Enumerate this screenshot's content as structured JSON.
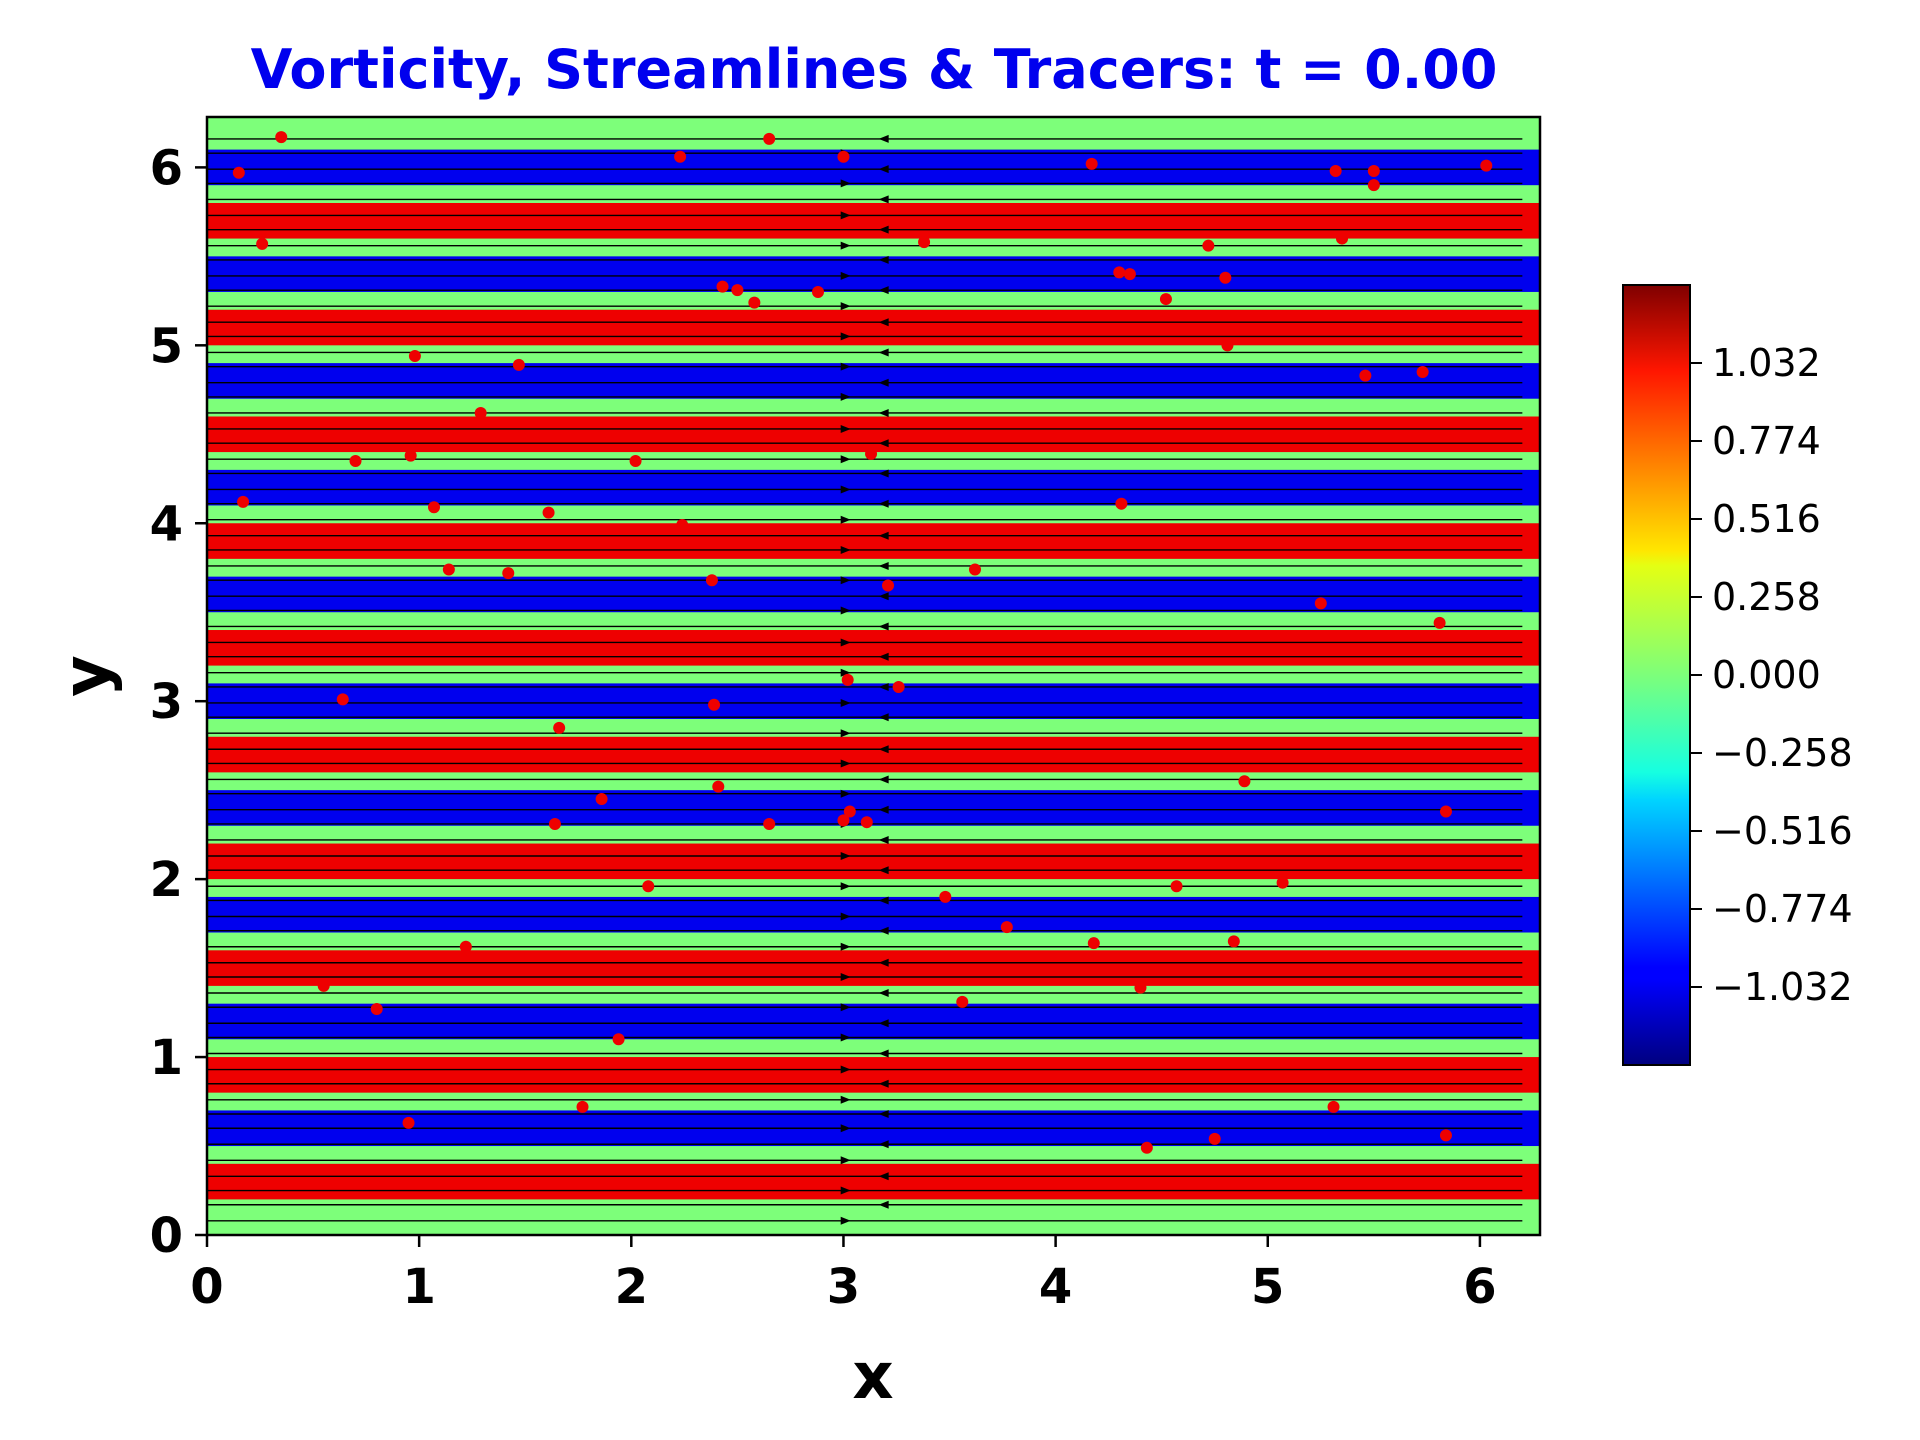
{
  "chart_data": {
    "type": "heatmap",
    "title": "Vorticity, Streamlines & Tracers: t = 0.00",
    "title_color": "#0000ee",
    "xlabel": "x",
    "ylabel": "y",
    "xlim": [
      0,
      6.2832
    ],
    "ylim": [
      0,
      6.2832
    ],
    "x_ticks": [
      "0",
      "1",
      "2",
      "3",
      "4",
      "5",
      "6"
    ],
    "y_ticks": [
      "0",
      "1",
      "2",
      "3",
      "4",
      "5",
      "6"
    ],
    "grid": false,
    "colormap": "jet",
    "colorbar": {
      "range": [
        -1.29,
        1.29
      ],
      "ticks": [
        1.032,
        0.774,
        0.516,
        0.258,
        0.0,
        -0.258,
        -0.516,
        -0.774,
        -1.032
      ],
      "tick_labels": [
        "1.032",
        "0.774",
        "0.516",
        "0.258",
        "0.000",
        "−0.258",
        "−0.516",
        "−0.774",
        "−1.032"
      ]
    },
    "vorticity_bands": {
      "description_values": "horizontal shear-layer bands of vorticity alternating +1.2 / 0 / -1.2 / 0 with period 0.6",
      "band_period": 0.6,
      "bands": [
        {
          "y0": 0.2,
          "y1": 0.4,
          "value": 1.2
        },
        {
          "y0": 0.5,
          "y1": 0.7,
          "value": -1.2
        },
        {
          "y0": 0.8,
          "y1": 1.0,
          "value": 1.2
        },
        {
          "y0": 1.1,
          "y1": 1.3,
          "value": -1.2
        },
        {
          "y0": 1.4,
          "y1": 1.6,
          "value": 1.2
        },
        {
          "y0": 1.7,
          "y1": 1.9,
          "value": -1.2
        },
        {
          "y0": 2.0,
          "y1": 2.2,
          "value": 1.2
        },
        {
          "y0": 2.3,
          "y1": 2.5,
          "value": -1.2
        },
        {
          "y0": 2.6,
          "y1": 2.8,
          "value": 1.2
        },
        {
          "y0": 2.9,
          "y1": 3.1,
          "value": -1.2
        },
        {
          "y0": 3.2,
          "y1": 3.4,
          "value": 1.2
        },
        {
          "y0": 3.5,
          "y1": 3.7,
          "value": -1.2
        },
        {
          "y0": 3.8,
          "y1": 4.0,
          "value": 1.2
        },
        {
          "y0": 4.1,
          "y1": 4.3,
          "value": -1.2
        },
        {
          "y0": 4.4,
          "y1": 4.6,
          "value": 1.2
        },
        {
          "y0": 4.7,
          "y1": 4.9,
          "value": -1.2
        },
        {
          "y0": 5.0,
          "y1": 5.2,
          "value": 1.2
        },
        {
          "y0": 5.3,
          "y1": 5.5,
          "value": -1.2
        },
        {
          "y0": 5.6,
          "y1": 5.8,
          "value": 1.2
        },
        {
          "y0": 5.9,
          "y1": 6.1,
          "value": -1.2
        }
      ]
    },
    "streamlines": {
      "y": [
        0.08,
        0.17,
        0.25,
        0.33,
        0.42,
        0.51,
        0.6,
        0.68,
        0.76,
        0.85,
        0.93,
        1.02,
        1.11,
        1.19,
        1.28,
        1.36,
        1.45,
        1.53,
        1.62,
        1.71,
        1.79,
        1.88,
        1.96,
        2.05,
        2.13,
        2.22,
        2.31,
        2.39,
        2.48,
        2.56,
        2.65,
        2.73,
        2.82,
        2.91,
        2.99,
        3.08,
        3.16,
        3.25,
        3.33,
        3.42,
        3.51,
        3.59,
        3.68,
        3.76,
        3.85,
        3.93,
        4.02,
        4.11,
        4.19,
        4.28,
        4.36,
        4.45,
        4.53,
        4.62,
        4.71,
        4.79,
        4.88,
        4.96,
        5.05,
        5.13,
        5.22,
        5.31,
        5.39,
        5.48,
        5.56,
        5.65,
        5.73,
        5.82,
        5.91,
        5.99,
        6.08,
        6.16
      ],
      "color": "#000000"
    },
    "tracers": {
      "color": "#ee0000",
      "points": [
        [
          0.35,
          6.17
        ],
        [
          0.15,
          5.97
        ],
        [
          0.26,
          5.57
        ],
        [
          2.23,
          6.06
        ],
        [
          2.65,
          6.16
        ],
        [
          3.0,
          6.06
        ],
        [
          4.17,
          6.02
        ],
        [
          5.32,
          5.98
        ],
        [
          5.5,
          5.98
        ],
        [
          5.5,
          5.9
        ],
        [
          6.03,
          6.01
        ],
        [
          3.38,
          5.58
        ],
        [
          4.72,
          5.56
        ],
        [
          5.35,
          5.6
        ],
        [
          2.43,
          5.33
        ],
        [
          2.5,
          5.31
        ],
        [
          2.58,
          5.24
        ],
        [
          2.88,
          5.3
        ],
        [
          4.3,
          5.41
        ],
        [
          4.35,
          5.4
        ],
        [
          4.52,
          5.26
        ],
        [
          4.8,
          5.38
        ],
        [
          0.98,
          4.94
        ],
        [
          1.47,
          4.89
        ],
        [
          4.81,
          5.0
        ],
        [
          5.46,
          4.83
        ],
        [
          5.73,
          4.85
        ],
        [
          1.29,
          4.62
        ],
        [
          0.7,
          4.35
        ],
        [
          0.96,
          4.38
        ],
        [
          2.02,
          4.35
        ],
        [
          3.13,
          4.39
        ],
        [
          0.17,
          4.12
        ],
        [
          1.07,
          4.09
        ],
        [
          1.61,
          4.06
        ],
        [
          4.31,
          4.11
        ],
        [
          2.24,
          3.99
        ],
        [
          1.14,
          3.74
        ],
        [
          1.42,
          3.72
        ],
        [
          2.38,
          3.68
        ],
        [
          3.21,
          3.65
        ],
        [
          3.62,
          3.74
        ],
        [
          5.25,
          3.55
        ],
        [
          5.81,
          3.44
        ],
        [
          0.64,
          3.01
        ],
        [
          2.39,
          2.98
        ],
        [
          3.02,
          3.12
        ],
        [
          3.26,
          3.08
        ],
        [
          1.66,
          2.85
        ],
        [
          2.41,
          2.52
        ],
        [
          4.89,
          2.55
        ],
        [
          1.86,
          2.45
        ],
        [
          1.64,
          2.31
        ],
        [
          2.65,
          2.31
        ],
        [
          3.0,
          2.33
        ],
        [
          3.03,
          2.38
        ],
        [
          3.11,
          2.32
        ],
        [
          5.84,
          2.38
        ],
        [
          2.08,
          1.96
        ],
        [
          3.48,
          1.9
        ],
        [
          4.57,
          1.96
        ],
        [
          5.07,
          1.98
        ],
        [
          3.77,
          1.73
        ],
        [
          1.22,
          1.62
        ],
        [
          4.18,
          1.64
        ],
        [
          4.84,
          1.65
        ],
        [
          0.8,
          1.27
        ],
        [
          3.56,
          1.31
        ],
        [
          4.4,
          1.39
        ],
        [
          0.55,
          1.4
        ],
        [
          1.94,
          1.1
        ],
        [
          0.95,
          0.63
        ],
        [
          1.77,
          0.72
        ],
        [
          5.31,
          0.72
        ],
        [
          4.43,
          0.49
        ],
        [
          4.75,
          0.54
        ],
        [
          5.84,
          0.56
        ]
      ]
    }
  }
}
